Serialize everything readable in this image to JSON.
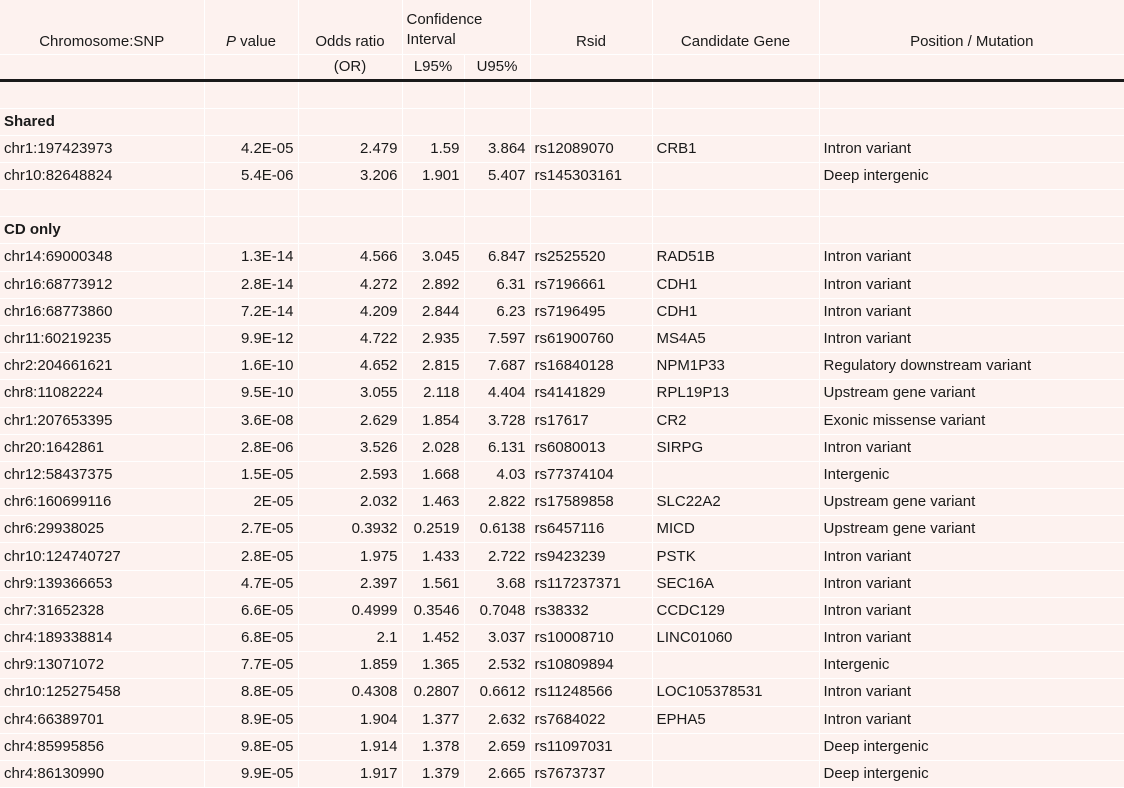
{
  "headers": {
    "chromosome_snp": "Chromosome:SNP",
    "p_italic": "P",
    "p_rest": " value",
    "odds_ratio": "Odds ratio",
    "odds_ratio_sub": "(OR)",
    "ci_line1": "Confidence",
    "ci_line2": "Interval",
    "l95": "L95%",
    "u95": "U95%",
    "rsid": "Rsid",
    "candidate_gene": "Candidate Gene",
    "position_mutation": "Position / Mutation"
  },
  "sections": [
    {
      "title": "Shared",
      "rows": [
        [
          "chr1:197423973",
          "4.2E-05",
          "2.479",
          "1.59",
          "3.864",
          "rs12089070",
          "CRB1",
          "Intron variant"
        ],
        [
          "chr10:82648824",
          "5.4E-06",
          "3.206",
          "1.901",
          "5.407",
          "rs145303161",
          "",
          "Deep intergenic"
        ]
      ]
    },
    {
      "title": "CD only",
      "rows": [
        [
          "chr14:69000348",
          "1.3E-14",
          "4.566",
          "3.045",
          "6.847",
          "rs2525520",
          "RAD51B",
          "Intron variant"
        ],
        [
          "chr16:68773912",
          "2.8E-14",
          "4.272",
          "2.892",
          "6.31",
          "rs7196661",
          "CDH1",
          "Intron variant"
        ],
        [
          "chr16:68773860",
          "7.2E-14",
          "4.209",
          "2.844",
          "6.23",
          "rs7196495",
          "CDH1",
          "Intron variant"
        ],
        [
          "chr11:60219235",
          "9.9E-12",
          "4.722",
          "2.935",
          "7.597",
          "rs61900760",
          "MS4A5",
          "Intron variant"
        ],
        [
          "chr2:204661621",
          "1.6E-10",
          "4.652",
          "2.815",
          "7.687",
          "rs16840128",
          "NPM1P33",
          "Regulatory downstream variant"
        ],
        [
          "chr8:11082224",
          "9.5E-10",
          "3.055",
          "2.118",
          "4.404",
          "rs4141829",
          "RPL19P13",
          "Upstream gene variant"
        ],
        [
          "chr1:207653395",
          "3.6E-08",
          "2.629",
          "1.854",
          "3.728",
          "rs17617",
          "CR2",
          "Exonic missense variant"
        ],
        [
          "chr20:1642861",
          "2.8E-06",
          "3.526",
          "2.028",
          "6.131",
          "rs6080013",
          "SIRPG",
          "Intron variant"
        ],
        [
          "chr12:58437375",
          "1.5E-05",
          "2.593",
          "1.668",
          "4.03",
          "rs77374104",
          "",
          "Intergenic"
        ],
        [
          "chr6:160699116",
          "2E-05",
          "2.032",
          "1.463",
          "2.822",
          "rs17589858",
          "SLC22A2",
          "Upstream gene variant"
        ],
        [
          "chr6:29938025",
          "2.7E-05",
          "0.3932",
          "0.2519",
          "0.6138",
          "rs6457116",
          "MICD",
          "Upstream gene variant"
        ],
        [
          "chr10:124740727",
          "2.8E-05",
          "1.975",
          "1.433",
          "2.722",
          "rs9423239",
          "PSTK",
          "Intron variant"
        ],
        [
          "chr9:139366653",
          "4.7E-05",
          "2.397",
          "1.561",
          "3.68",
          "rs117237371",
          "SEC16A",
          "Intron variant"
        ],
        [
          "chr7:31652328",
          "6.6E-05",
          "0.4999",
          "0.3546",
          "0.7048",
          "rs38332",
          "CCDC129",
          "Intron variant"
        ],
        [
          "chr4:189338814",
          "6.8E-05",
          "2.1",
          "1.452",
          "3.037",
          "rs10008710",
          "LINC01060",
          "Intron variant"
        ],
        [
          "chr9:13071072",
          "7.7E-05",
          "1.859",
          "1.365",
          "2.532",
          "rs10809894",
          "",
          "Intergenic"
        ],
        [
          "chr10:125275458",
          "8.8E-05",
          "0.4308",
          "0.2807",
          "0.6612",
          "rs11248566",
          "LOC105378531",
          "Intron variant"
        ],
        [
          "chr4:66389701",
          "8.9E-05",
          "1.904",
          "1.377",
          "2.632",
          "rs7684022",
          "EPHA5",
          "Intron variant"
        ],
        [
          "chr4:85995856",
          "9.8E-05",
          "1.914",
          "1.378",
          "2.659",
          "rs11097031",
          "",
          "Deep intergenic"
        ],
        [
          "chr4:86130990",
          "9.9E-05",
          "1.917",
          "1.379",
          "2.665",
          "rs7673737",
          "",
          "Deep intergenic"
        ]
      ]
    }
  ]
}
